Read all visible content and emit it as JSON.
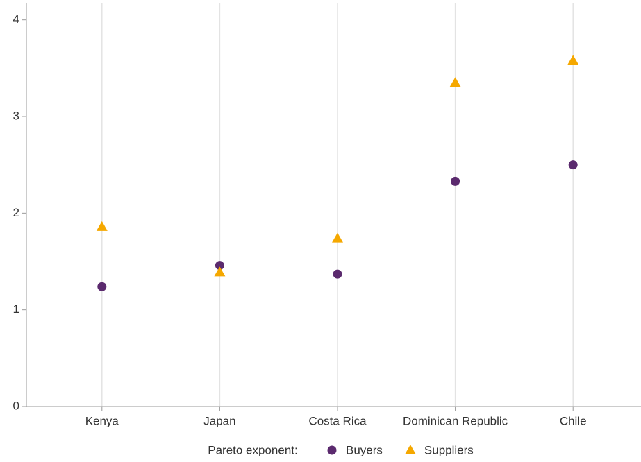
{
  "chart_data": {
    "type": "dot",
    "categories": [
      "Kenya",
      "Japan",
      "Costa Rica",
      "Dominican Republic",
      "Chile"
    ],
    "legend_title": "Pareto exponent:",
    "series": [
      {
        "name": "Buyers",
        "color": "#5b2a6e",
        "marker": "circle",
        "values": [
          1.24,
          1.46,
          1.37,
          2.33,
          2.5
        ]
      },
      {
        "name": "Suppliers",
        "color": "#f5a800",
        "marker": "triangle",
        "values": [
          1.86,
          1.39,
          1.74,
          3.35,
          3.58
        ]
      }
    ],
    "ylim": [
      0,
      4.17
    ],
    "yticks": [
      0,
      1,
      2,
      3,
      4
    ],
    "grid": true,
    "legend_position": "bottom"
  }
}
